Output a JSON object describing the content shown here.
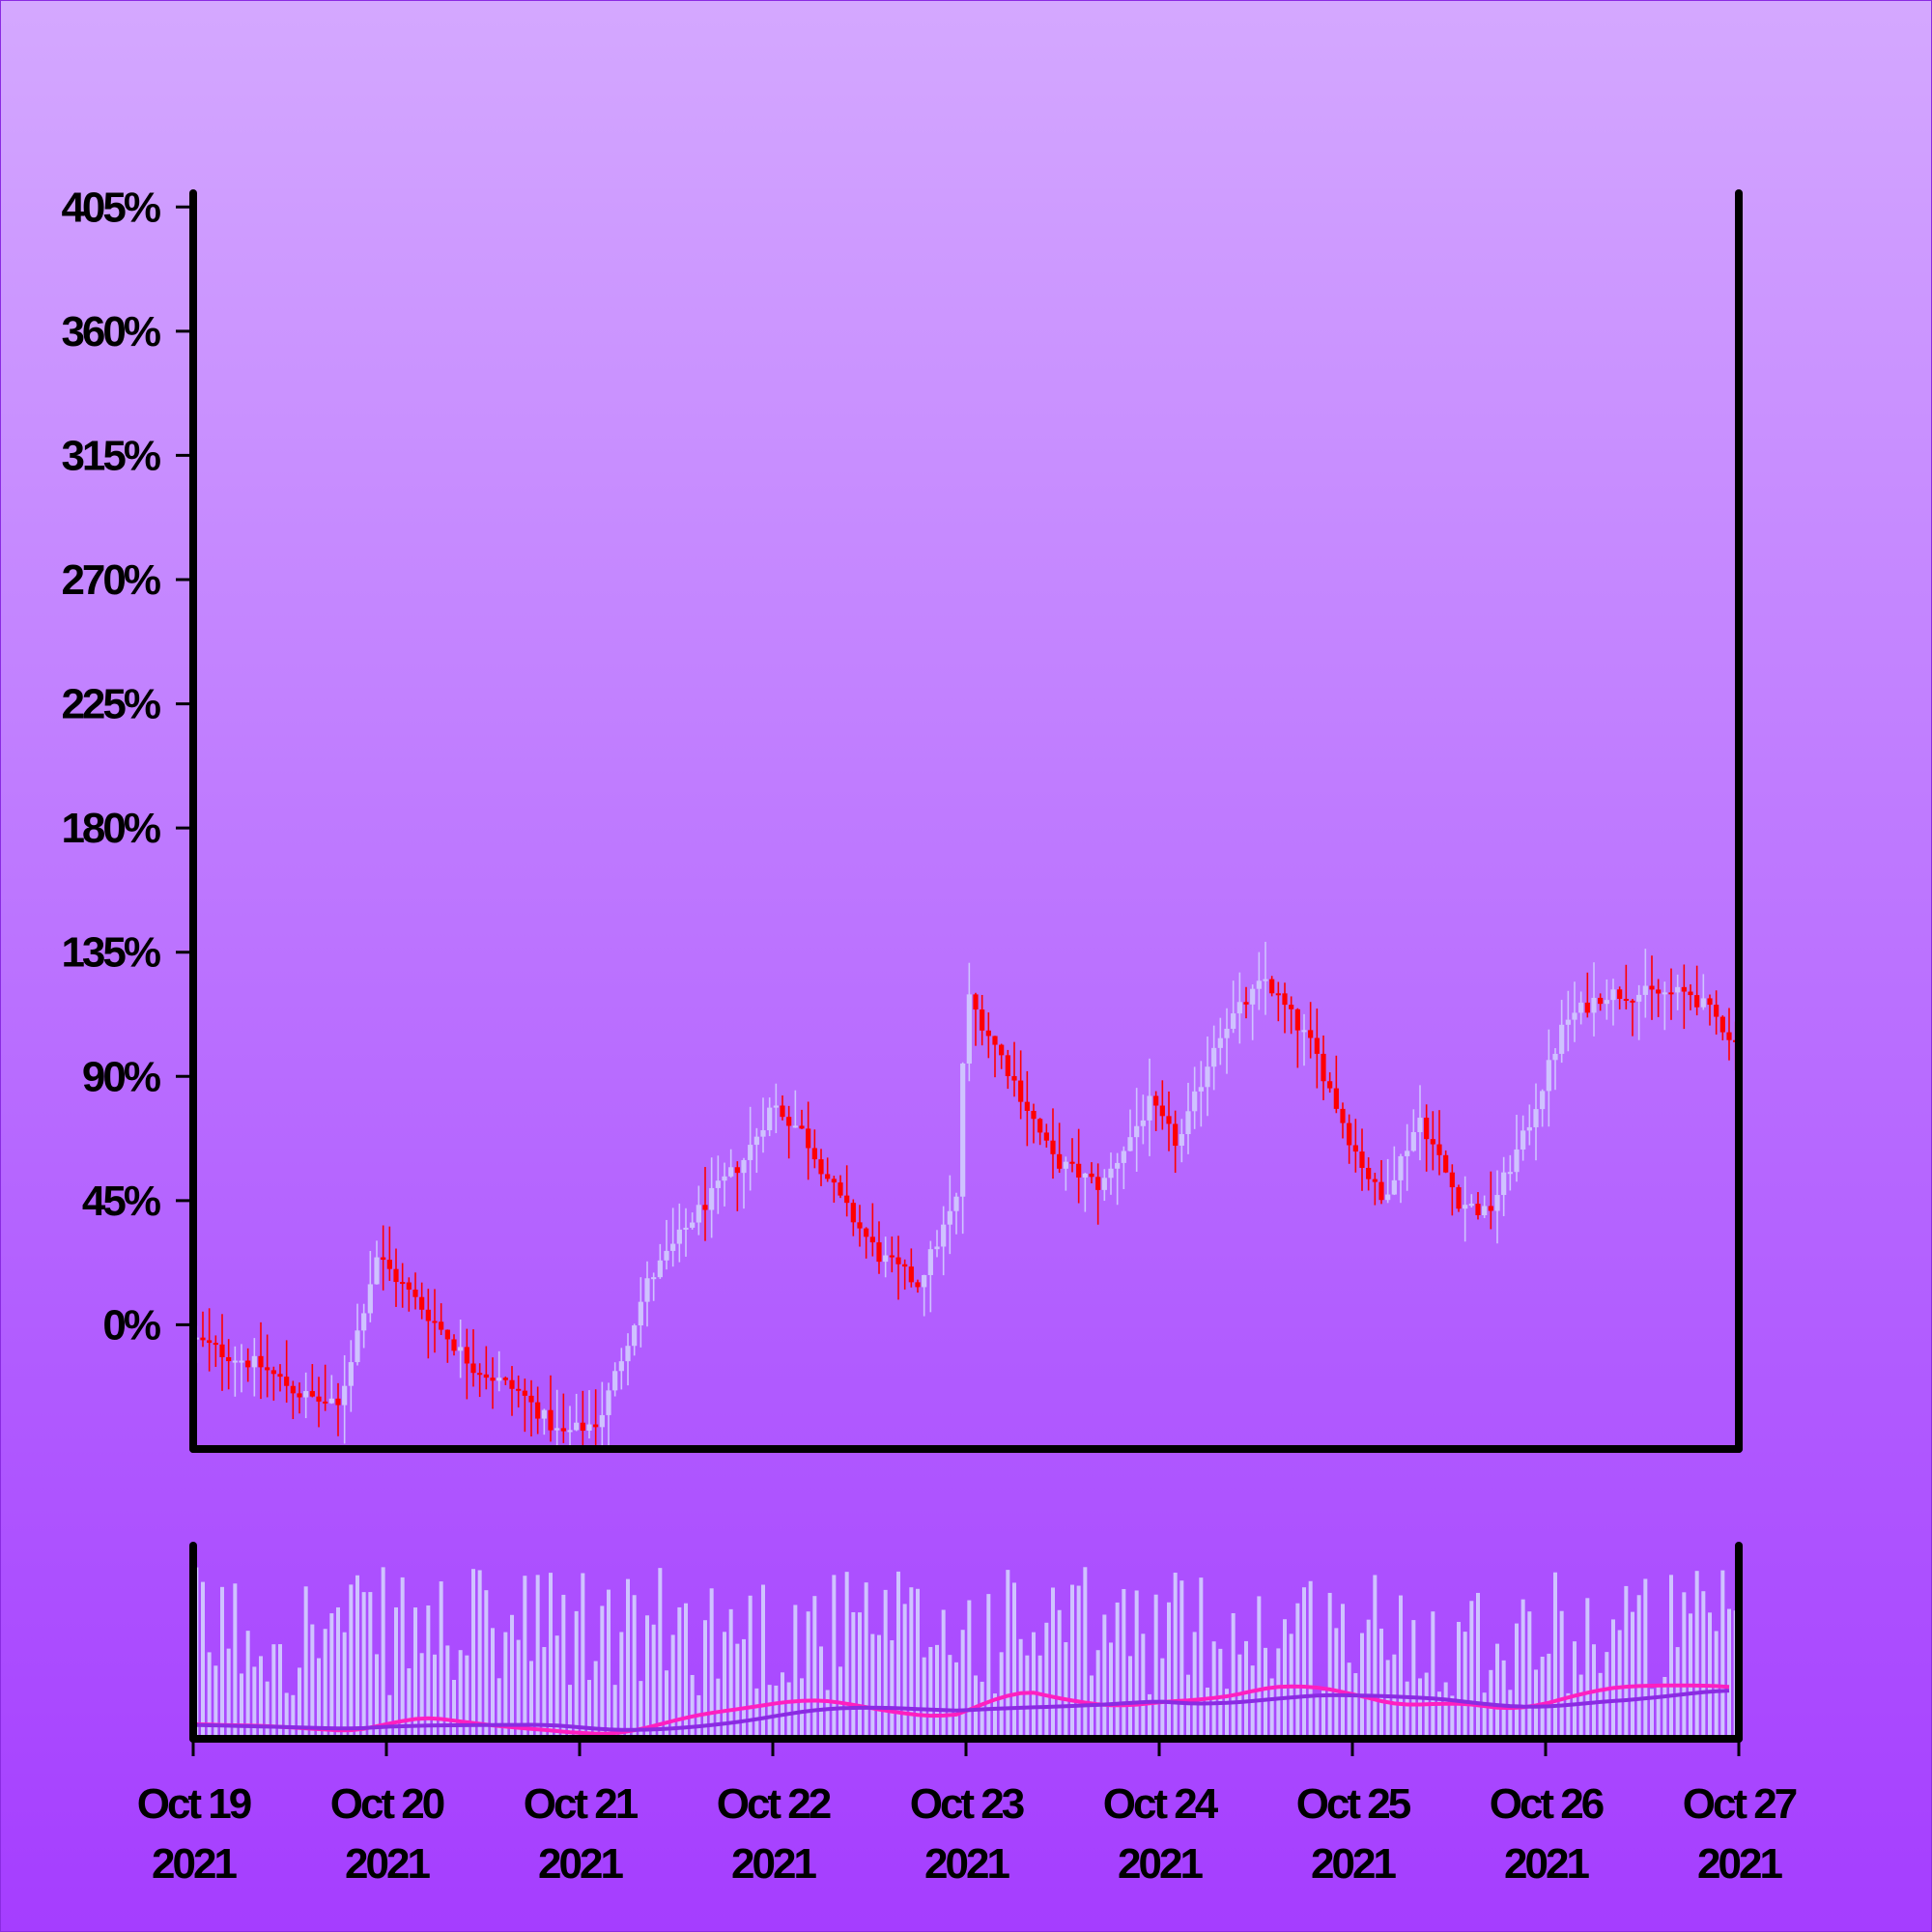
{
  "chart_data": {
    "type": "candlestick",
    "price_panel": {
      "ylabel": "",
      "ylim": [
        -45,
        410
      ],
      "y_ticks": [
        0,
        45,
        90,
        135,
        180,
        225,
        270,
        315,
        360,
        405
      ],
      "y_tick_labels": [
        "0%",
        "45%",
        "90%",
        "135%",
        "180%",
        "225%",
        "270%",
        "315%",
        "360%",
        "405%"
      ]
    },
    "x_axis": {
      "start": "2021-10-19",
      "end": "2021-10-27",
      "ticks": [
        {
          "date": "2021-10-19",
          "line1": "Oct 19",
          "line2": "2021"
        },
        {
          "date": "2021-10-20",
          "line1": "Oct 20",
          "line2": "2021"
        },
        {
          "date": "2021-10-21",
          "line1": "Oct 21",
          "line2": "2021"
        },
        {
          "date": "2021-10-22",
          "line1": "Oct 22",
          "line2": "2021"
        },
        {
          "date": "2021-10-23",
          "line1": "Oct 23",
          "line2": "2021"
        },
        {
          "date": "2021-10-24",
          "line1": "Oct 24",
          "line2": "2021"
        },
        {
          "date": "2021-10-25",
          "line1": "Oct 25",
          "line2": "2021"
        },
        {
          "date": "2021-10-26",
          "line1": "Oct 26",
          "line2": "2021"
        },
        {
          "date": "2021-10-27",
          "line1": "Oct 27",
          "line2": "2021"
        }
      ]
    },
    "close_path": {
      "day": [
        0,
        0.15,
        0.35,
        0.55,
        0.75,
        0.95,
        1.2,
        1.45,
        1.7,
        1.9,
        2.1,
        2.35,
        2.6,
        2.85,
        3.0,
        3.15,
        3.35,
        3.55,
        3.75,
        3.95,
        4.0,
        4.2,
        4.45,
        4.7,
        4.95,
        5.1,
        5.3,
        5.55,
        5.8,
        6.0,
        6.15,
        6.35,
        6.55,
        6.7,
        6.9,
        7.1,
        7.3,
        7.45,
        7.6,
        7.75,
        7.9,
        8.0
      ],
      "pct": [
        -5,
        -10,
        -15,
        -25,
        -30,
        25,
        5,
        -15,
        -25,
        -40,
        -35,
        15,
        40,
        60,
        80,
        70,
        45,
        25,
        15,
        45,
        120,
        95,
        60,
        50,
        80,
        65,
        105,
        125,
        100,
        65,
        45,
        75,
        45,
        40,
        70,
        110,
        120,
        120,
        120,
        120,
        110,
        100
      ],
      "up_color": "#cfc3ff",
      "down_color": "#ff0000"
    },
    "volume_panel": {
      "bar_color": "#cfc3ff",
      "ma_short_color": "#ff1fbf",
      "ma_long_color": "#8a2be2"
    }
  }
}
